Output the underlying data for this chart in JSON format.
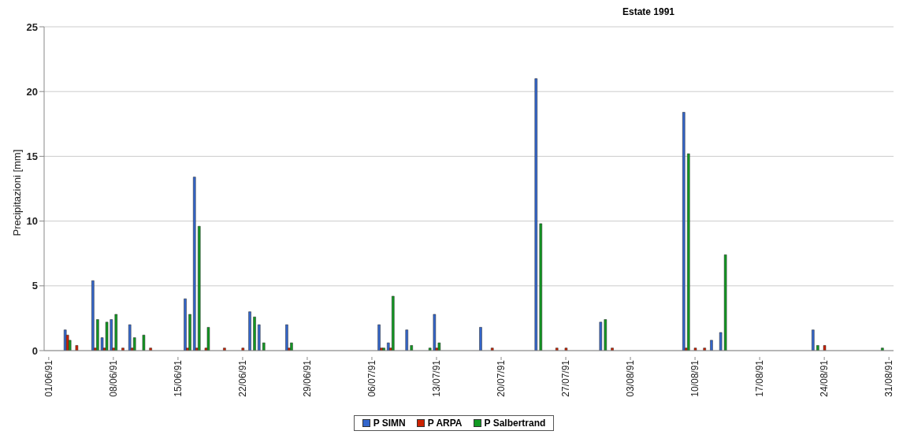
{
  "chart_data": {
    "type": "bar",
    "title": "Estate 1991",
    "ylabel": "Precipitazioni [mm]",
    "categories": [
      "01/06/91",
      null,
      null,
      null,
      null,
      null,
      null,
      "08/06/91",
      null,
      null,
      null,
      null,
      null,
      null,
      "15/06/91",
      null,
      null,
      null,
      null,
      null,
      null,
      "22/06/91",
      null,
      null,
      null,
      null,
      null,
      null,
      "29/06/91",
      null,
      null,
      null,
      null,
      null,
      null,
      "06/07/91",
      null,
      null,
      null,
      null,
      null,
      null,
      "13/07/91",
      null,
      null,
      null,
      null,
      null,
      null,
      "20/07/91",
      null,
      null,
      null,
      null,
      null,
      null,
      "27/07/91",
      null,
      null,
      null,
      null,
      null,
      null,
      "03/08/91",
      null,
      null,
      null,
      null,
      null,
      null,
      "10/08/91",
      null,
      null,
      null,
      null,
      null,
      null,
      "17/08/91",
      null,
      null,
      null,
      null,
      null,
      null,
      "24/08/91",
      null,
      null,
      null,
      null,
      null,
      null,
      "31/08/91"
    ],
    "series": [
      {
        "name": "P SIMN",
        "color": "#3366cc",
        "values": [
          null,
          null,
          1.6,
          null,
          null,
          5.4,
          1.0,
          2.4,
          null,
          2.0,
          null,
          null,
          null,
          null,
          null,
          4.0,
          13.4,
          null,
          null,
          null,
          null,
          null,
          3.0,
          2.0,
          null,
          null,
          2.0,
          null,
          null,
          null,
          null,
          null,
          null,
          null,
          null,
          null,
          2.0,
          0.6,
          null,
          1.6,
          null,
          null,
          2.8,
          null,
          null,
          null,
          null,
          1.8,
          null,
          null,
          null,
          null,
          null,
          21.0,
          null,
          null,
          null,
          null,
          null,
          null,
          2.2,
          null,
          null,
          null,
          null,
          null,
          null,
          null,
          null,
          18.4,
          null,
          null,
          0.8,
          1.4,
          null,
          null,
          null,
          null,
          null,
          null,
          null,
          null,
          null,
          1.6,
          null,
          null,
          null,
          null,
          null,
          null,
          null,
          null
        ]
      },
      {
        "name": "P ARPA",
        "color": "#cc2200",
        "values": [
          null,
          null,
          1.2,
          0.4,
          null,
          0.2,
          0.2,
          0.2,
          0.2,
          0.2,
          null,
          0.2,
          null,
          null,
          null,
          0.2,
          0.2,
          0.2,
          null,
          0.2,
          null,
          0.2,
          null,
          null,
          null,
          null,
          0.2,
          null,
          null,
          null,
          null,
          null,
          null,
          null,
          null,
          null,
          0.2,
          0.2,
          null,
          null,
          null,
          null,
          0.2,
          null,
          null,
          null,
          null,
          null,
          0.2,
          null,
          null,
          null,
          null,
          null,
          null,
          0.2,
          0.2,
          null,
          null,
          null,
          null,
          0.2,
          null,
          null,
          null,
          null,
          null,
          null,
          null,
          0.2,
          0.2,
          0.2,
          null,
          null,
          null,
          null,
          null,
          null,
          null,
          null,
          null,
          null,
          null,
          null,
          0.4,
          null,
          null,
          null,
          null,
          null,
          null,
          null
        ]
      },
      {
        "name": "P Salbertrand",
        "color": "#119922",
        "values": [
          null,
          null,
          0.8,
          null,
          null,
          2.4,
          2.2,
          2.8,
          null,
          1.0,
          1.2,
          null,
          null,
          null,
          null,
          2.8,
          9.6,
          1.8,
          null,
          null,
          null,
          null,
          2.6,
          0.6,
          null,
          null,
          0.6,
          null,
          null,
          null,
          null,
          null,
          null,
          null,
          null,
          null,
          0.2,
          4.2,
          null,
          0.4,
          null,
          0.2,
          0.6,
          null,
          null,
          null,
          null,
          null,
          null,
          null,
          null,
          null,
          null,
          9.8,
          null,
          null,
          null,
          null,
          null,
          null,
          2.4,
          null,
          null,
          null,
          null,
          null,
          null,
          null,
          null,
          15.2,
          null,
          null,
          null,
          7.4,
          null,
          null,
          null,
          null,
          null,
          null,
          null,
          null,
          null,
          0.4,
          null,
          null,
          null,
          null,
          null,
          null,
          0.2,
          null
        ]
      }
    ],
    "ylim": [
      0,
      25
    ],
    "yticks": [
      0,
      5,
      10,
      15,
      20,
      25
    ],
    "grid": "y",
    "legend": "bottom"
  }
}
